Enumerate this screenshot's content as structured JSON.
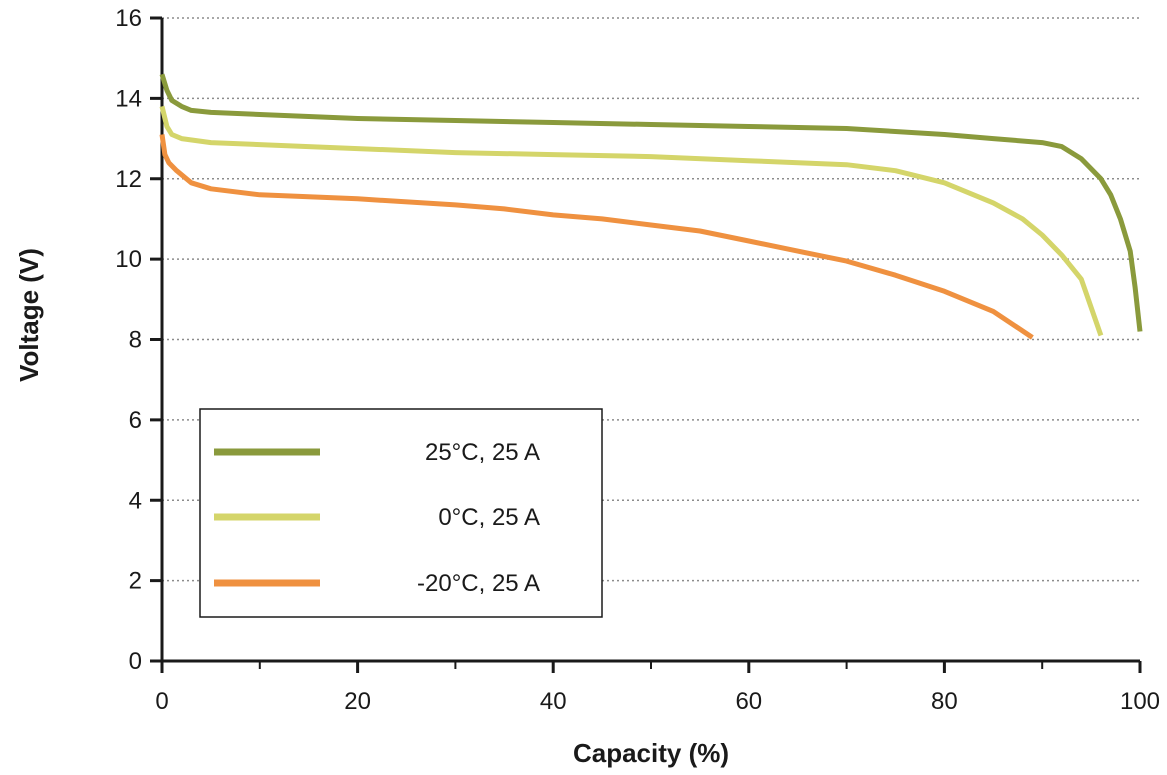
{
  "chart_data": {
    "type": "line",
    "xlabel": "Capacity (%)",
    "ylabel": "Voltage (V)",
    "xlim": [
      0,
      100
    ],
    "ylim": [
      0,
      16
    ],
    "x_ticks": [
      "0",
      "20",
      "40",
      "60",
      "80",
      "100"
    ],
    "y_ticks": [
      "0",
      "2",
      "4",
      "6",
      "8",
      "10",
      "12",
      "14",
      "16"
    ],
    "grid": "horizontal dotted",
    "legend_position": "bottom-left",
    "series": [
      {
        "name": "25°C, 25 A",
        "color": "#8a9a3c",
        "x": [
          0,
          0.5,
          1,
          2,
          3,
          5,
          10,
          20,
          30,
          40,
          50,
          60,
          70,
          80,
          85,
          90,
          92,
          94,
          96,
          97,
          98,
          99,
          99.5,
          100
        ],
        "y": [
          14.6,
          14.2,
          13.95,
          13.8,
          13.7,
          13.65,
          13.6,
          13.5,
          13.45,
          13.4,
          13.35,
          13.3,
          13.25,
          13.1,
          13.0,
          12.9,
          12.8,
          12.5,
          12.0,
          11.6,
          11.0,
          10.2,
          9.3,
          8.2
        ]
      },
      {
        "name": "0°C, 25 A",
        "color": "#d4d56a",
        "x": [
          0,
          0.5,
          1,
          2,
          5,
          10,
          20,
          30,
          40,
          50,
          60,
          70,
          75,
          80,
          85,
          88,
          90,
          92,
          94,
          95,
          96
        ],
        "y": [
          13.8,
          13.3,
          13.1,
          13.0,
          12.9,
          12.85,
          12.75,
          12.65,
          12.6,
          12.55,
          12.45,
          12.35,
          12.2,
          11.9,
          11.4,
          11.0,
          10.6,
          10.1,
          9.5,
          8.8,
          8.1
        ]
      },
      {
        "name": "-20°C, 25 A",
        "color": "#ef9140",
        "x": [
          0,
          0.3,
          0.7,
          1.5,
          3,
          5,
          10,
          20,
          30,
          35,
          40,
          45,
          50,
          55,
          60,
          65,
          70,
          75,
          80,
          85,
          89
        ],
        "y": [
          13.1,
          12.6,
          12.4,
          12.2,
          11.9,
          11.75,
          11.6,
          11.5,
          11.35,
          11.25,
          11.1,
          11.0,
          10.85,
          10.7,
          10.45,
          10.2,
          9.95,
          9.6,
          9.2,
          8.7,
          8.05
        ]
      }
    ]
  }
}
